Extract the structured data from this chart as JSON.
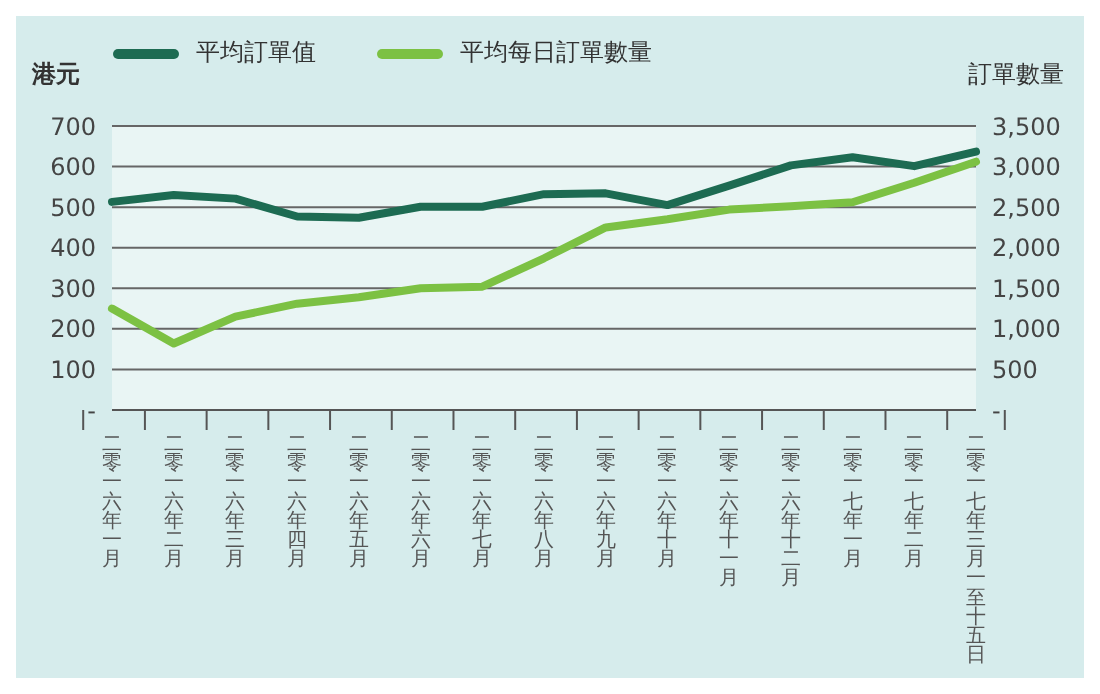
{
  "chart_data": {
    "type": "line",
    "ylabel": "港元",
    "y2label": "訂單數量",
    "categories": [
      "二零一六年一月",
      "二零一六年二月",
      "二零一六年三月",
      "二零一六年四月",
      "二零一六年五月",
      "二零一六年六月",
      "二零一六年七月",
      "二零一六年八月",
      "二零一六年九月",
      "二零一六年十月",
      "二零一六年十一月",
      "二零一六年十二月",
      "二零一七年一月",
      "二零一七年二月",
      "二零一七年三月一至十五日"
    ],
    "series": [
      {
        "name": "平均訂單值",
        "color": "#1d6b52",
        "values": [
          513,
          530,
          521,
          477,
          474,
          501,
          501,
          532,
          534,
          505,
          553,
          603,
          623,
          601,
          637
        ]
      },
      {
        "name": "平均每日訂單數量",
        "color": "#7cc143",
        "axis": "y2",
        "values": [
          1250,
          820,
          1150,
          1310,
          1390,
          1500,
          1520,
          1870,
          2250,
          2350,
          2470,
          2510,
          2560,
          2800,
          3060
        ]
      }
    ],
    "ylim": [
      0,
      700
    ],
    "yticks": [
      {
        "value": 0,
        "label": "-"
      },
      100,
      200,
      300,
      400,
      500,
      600,
      700
    ],
    "y2lim": [
      0,
      3500
    ],
    "y2ticks": [
      {
        "value": 0,
        "label": "-"
      },
      500,
      {
        "value": 1000,
        "label": "1,000"
      },
      {
        "value": 1500,
        "label": "1,500"
      },
      {
        "value": 2000,
        "label": "2,000"
      },
      {
        "value": 2500,
        "label": "2,500"
      },
      {
        "value": 3000,
        "label": "3,000"
      },
      {
        "value": 3500,
        "label": "3,500"
      }
    ],
    "grid": "y",
    "legend": "top",
    "marker": "none",
    "line_style": "solid"
  }
}
